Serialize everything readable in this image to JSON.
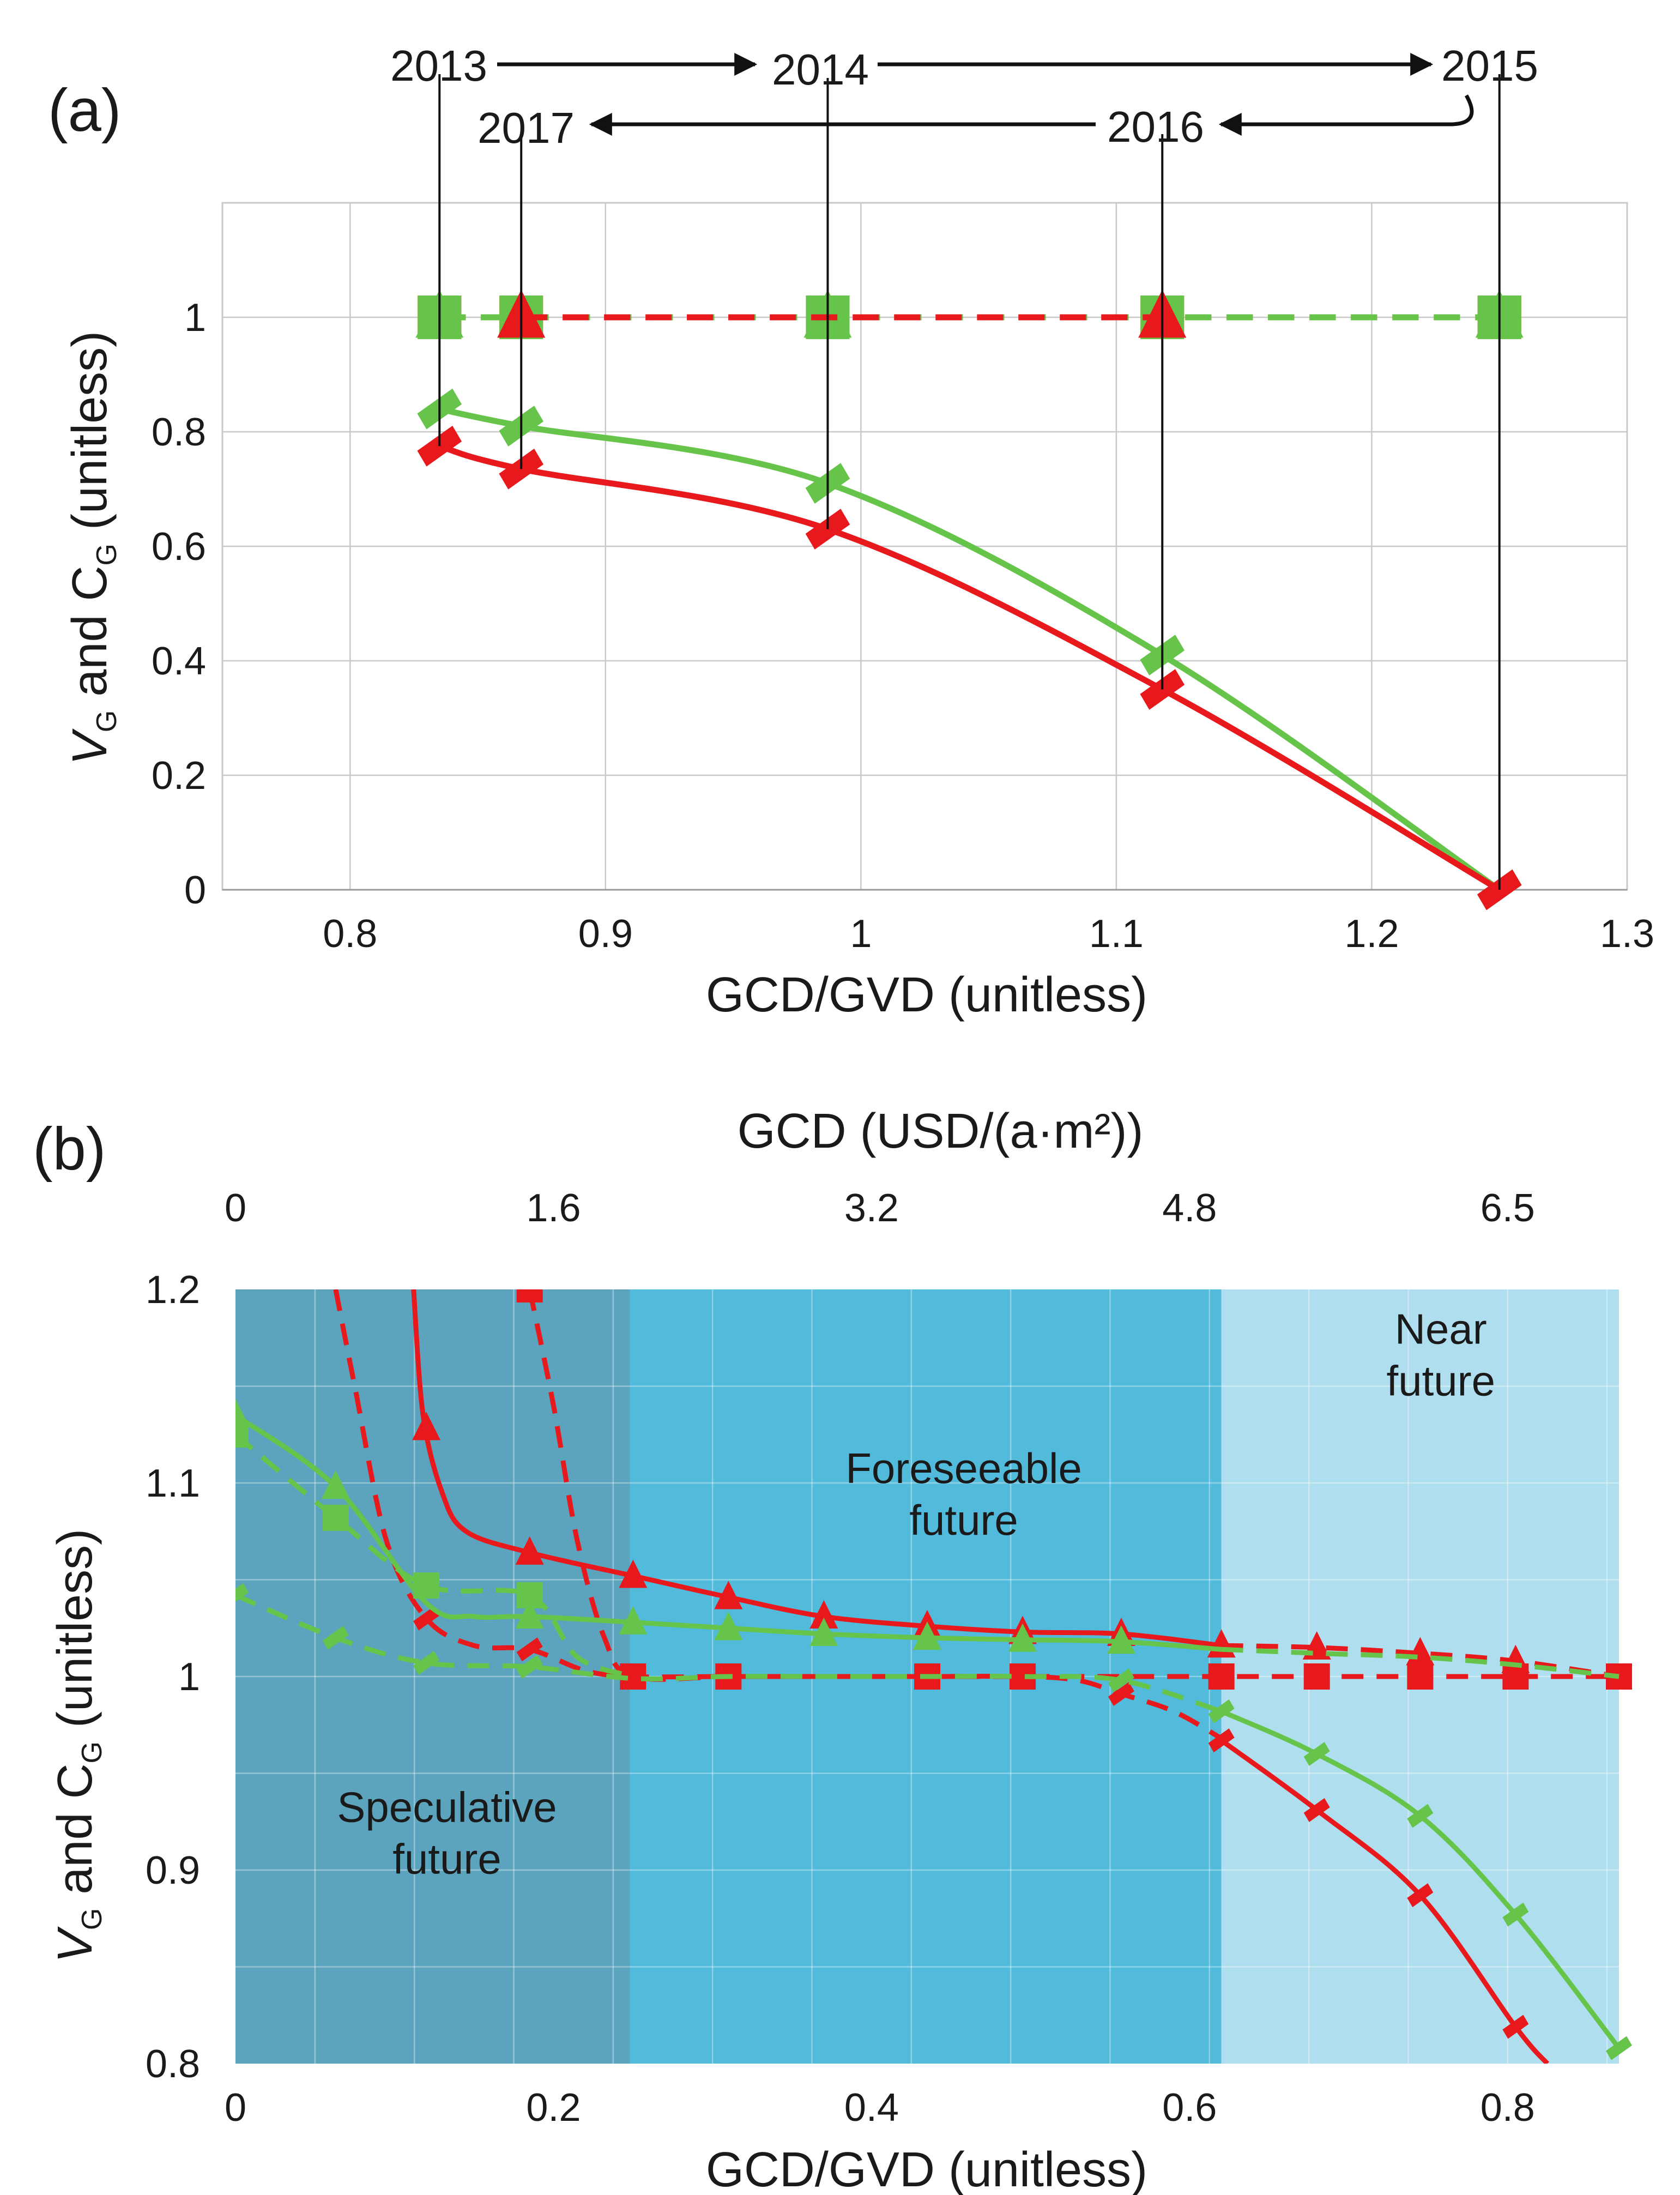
{
  "figure": {
    "panel_a_label": "(a)",
    "panel_b_label": "(b)"
  },
  "colors": {
    "red": "#e8191c",
    "green": "#66c44a",
    "grid": "#c9c9c9",
    "speculative_bg": "#4e9cb8",
    "foreseeable_bg": "#43b4d8",
    "near_bg": "#a8dcee"
  },
  "chart_data": [
    {
      "id": "panel-a",
      "type": "line",
      "title": "",
      "xlabel": "GCD/GVD (unitless)",
      "ylabel_parts": [
        "V",
        "G",
        " and C",
        "G",
        " (unitless)"
      ],
      "xlim": [
        0.75,
        1.3
      ],
      "ylim": [
        0,
        1.2
      ],
      "xticks": [
        0.8,
        0.9,
        1,
        1.1,
        1.2,
        1.3
      ],
      "xtick_labels": [
        "0.8",
        "0.9",
        "1",
        "1.1",
        "1.2",
        "1.3"
      ],
      "yticks": [
        0,
        0.2,
        0.4,
        0.6,
        0.8,
        1
      ],
      "ytick_labels": [
        "0",
        "0.2",
        "0.4",
        "0.6",
        "0.8",
        "1"
      ],
      "years": [
        {
          "label": "2013",
          "x": 0.835
        },
        {
          "label": "2014",
          "x": 0.987
        },
        {
          "label": "2015",
          "x": 1.25
        },
        {
          "label": "2016",
          "x": 1.118
        },
        {
          "label": "2017",
          "x": 0.867
        }
      ],
      "series": [
        {
          "name": "Red VG",
          "color": "red",
          "marker": "square",
          "style": "dashed",
          "x": [
            0.835,
            0.867,
            0.987,
            1.118,
            1.25
          ],
          "y": [
            1,
            1,
            1,
            1,
            1
          ]
        },
        {
          "name": "Green VG",
          "color": "green",
          "marker": "square",
          "style": "dashed",
          "x": [
            0.835,
            0.867,
            0.987,
            1.118,
            1.25
          ],
          "y": [
            1,
            1,
            1,
            1,
            1
          ]
        },
        {
          "name": "Green CG",
          "color": "green",
          "marker": "triangle",
          "style": "dashed",
          "x": [
            0.835,
            0.867,
            0.987,
            1.118,
            1.25
          ],
          "y": [
            1,
            1,
            1,
            1,
            1
          ]
        },
        {
          "name": "Red CG",
          "color": "red",
          "marker": "triangle",
          "style": "dashed",
          "x": [
            0.867,
            1.118
          ],
          "y": [
            1,
            1
          ]
        },
        {
          "name": "Green diamonds",
          "color": "green",
          "marker": "diamond",
          "style": "solid",
          "x": [
            0.835,
            0.867,
            0.987,
            1.118,
            1.25
          ],
          "y": [
            0.84,
            0.81,
            0.71,
            0.41,
            0.0
          ]
        },
        {
          "name": "Red diamonds",
          "color": "red",
          "marker": "diamond",
          "style": "solid",
          "x": [
            0.835,
            0.867,
            0.987,
            1.118,
            1.25
          ],
          "y": [
            0.775,
            0.735,
            0.63,
            0.35,
            0.0
          ]
        }
      ]
    },
    {
      "id": "panel-b",
      "type": "line",
      "title": "",
      "xlabel": "GCD/GVD (unitless)",
      "x2label": "GCD (USD/(a·m²))",
      "ylabel_parts": [
        "V",
        "G",
        " and C",
        "G",
        " (unitless)"
      ],
      "xlim": [
        0,
        0.87
      ],
      "ylim": [
        0.8,
        1.2
      ],
      "xticks": [
        0,
        0.2,
        0.4,
        0.6,
        0.8
      ],
      "xtick_labels": [
        "0",
        "0.2",
        "0.4",
        "0.6",
        "0.8"
      ],
      "x2ticks": [
        0,
        0.2,
        0.4,
        0.6,
        0.8
      ],
      "x2tick_labels": [
        "0",
        "1.6",
        "3.2",
        "4.8",
        "6.5"
      ],
      "yticks": [
        0.8,
        0.9,
        1,
        1.1,
        1.2
      ],
      "ytick_labels": [
        "0.8",
        "0.9",
        "1",
        "1.1",
        "1.2"
      ],
      "regions": [
        {
          "name": "Speculative future",
          "lines": [
            "Speculative",
            "future"
          ],
          "x": [
            0,
            0.248
          ],
          "fill": "speculative_bg",
          "label_x": 0.133,
          "label_y": 0.925
        },
        {
          "name": "Foreseeable future",
          "lines": [
            "Foreseeable",
            "future"
          ],
          "x": [
            0.248,
            0.62
          ],
          "fill": "foreseeable_bg",
          "label_x": 0.458,
          "label_y": 1.1
        },
        {
          "name": "Near future",
          "lines": [
            "Near",
            "future"
          ],
          "x": [
            0.62,
            0.87
          ],
          "fill": "near_bg",
          "label_x": 0.758,
          "label_y": 1.172
        }
      ],
      "series": [
        {
          "name": "Red triangle solid",
          "color": "red",
          "marker": "triangle",
          "style": "solid",
          "x": [
            0.112,
            0.118,
            0.13,
            0.145,
            0.185,
            0.25,
            0.31,
            0.37,
            0.435,
            0.495,
            0.557,
            0.62
          ],
          "y": [
            1.2,
            1.135,
            1.095,
            1.075,
            1.064,
            1.052,
            1.041,
            1.031,
            1.026,
            1.023,
            1.022,
            1.016
          ],
          "markers": [
            0.12,
            0.185,
            0.25,
            0.31,
            0.37,
            0.435,
            0.495,
            0.557,
            0.62
          ]
        },
        {
          "name": "Red triangle dashed",
          "color": "red",
          "marker": "triangle",
          "style": "dashed",
          "x": [
            0.62,
            0.68,
            0.745,
            0.805,
            0.87
          ],
          "y": [
            1.016,
            1.015,
            1.012,
            1.008,
            1.0
          ],
          "markers": [
            0.68,
            0.745,
            0.805
          ]
        },
        {
          "name": "Red square dashed",
          "color": "red",
          "marker": "square",
          "style": "dashed",
          "x": [
            0.185,
            0.2,
            0.215,
            0.232,
            0.25,
            0.31,
            0.37,
            0.435,
            0.495,
            0.557,
            0.62,
            0.68,
            0.745,
            0.805,
            0.87
          ],
          "y": [
            1.2,
            1.14,
            1.07,
            1.02,
            1.0,
            1.0,
            1.0,
            1.0,
            1.0,
            1.0,
            1.0,
            1.0,
            1.0,
            1.0,
            1.0
          ],
          "markers": [
            0.185,
            0.25,
            0.31,
            0.435,
            0.495,
            0.62,
            0.68,
            0.745,
            0.805,
            0.87
          ]
        },
        {
          "name": "Red diamond dashed",
          "color": "red",
          "marker": "diamond",
          "style": "dashed",
          "x": [
            0.063,
            0.075,
            0.095,
            0.12,
            0.15,
            0.185,
            0.22,
            0.25,
            0.31,
            0.37,
            0.435,
            0.495,
            0.53,
            0.557,
            0.59,
            0.62
          ],
          "y": [
            1.2,
            1.15,
            1.07,
            1.03,
            1.016,
            1.014,
            1.003,
            1.0,
            1.0,
            1.0,
            1.0,
            1.0,
            0.998,
            0.991,
            0.982,
            0.968
          ],
          "markers": [
            0.12,
            0.185,
            0.557
          ]
        },
        {
          "name": "Red diamond solid",
          "color": "red",
          "marker": "diamond",
          "style": "solid",
          "x": [
            0.62,
            0.68,
            0.745,
            0.805,
            0.825
          ],
          "y": [
            0.967,
            0.931,
            0.887,
            0.819,
            0.8
          ],
          "markers": [
            0.62,
            0.68,
            0.745,
            0.805
          ]
        },
        {
          "name": "Green triangle solid",
          "color": "green",
          "marker": "triangle",
          "style": "solid",
          "x": [
            0,
            0.063,
            0.12,
            0.15,
            0.185,
            0.25,
            0.31,
            0.37,
            0.435,
            0.495,
            0.557,
            0.62
          ],
          "y": [
            1.135,
            1.098,
            1.038,
            1.031,
            1.031,
            1.028,
            1.025,
            1.022,
            1.02,
            1.019,
            1.018,
            1.014
          ],
          "markers": [
            0,
            0.063,
            0.185,
            0.25,
            0.31,
            0.37,
            0.435,
            0.495,
            0.557
          ]
        },
        {
          "name": "Green triangle dashed",
          "color": "green",
          "marker": "triangle",
          "style": "dashed",
          "x": [
            0.62,
            0.68,
            0.745,
            0.805,
            0.87
          ],
          "y": [
            1.014,
            1.012,
            1.01,
            1.006,
            1.0
          ],
          "markers": []
        },
        {
          "name": "Green square dashed",
          "color": "green",
          "marker": "square",
          "style": "dashed",
          "x": [
            0,
            0.063,
            0.12,
            0.185,
            0.215,
            0.25
          ],
          "y": [
            1.125,
            1.082,
            1.047,
            1.042,
            1.01,
            1.0
          ],
          "markers": [
            0,
            0.063,
            0.12,
            0.185
          ]
        },
        {
          "name": "Green diamond dashed",
          "color": "green",
          "marker": "diamond",
          "style": "dashed",
          "x": [
            0,
            0.063,
            0.12,
            0.185,
            0.25,
            0.31,
            0.37,
            0.435,
            0.495,
            0.557,
            0.62
          ],
          "y": [
            1.042,
            1.02,
            1.007,
            1.005,
            0.999,
            1.0,
            1.0,
            1.0,
            1.0,
            0.998,
            0.982
          ],
          "markers": [
            0,
            0.063,
            0.12,
            0.185,
            0.557
          ]
        },
        {
          "name": "Green diamond solid",
          "color": "green",
          "marker": "diamond",
          "style": "solid",
          "x": [
            0.62,
            0.68,
            0.745,
            0.805,
            0.87
          ],
          "y": [
            0.982,
            0.96,
            0.928,
            0.877,
            0.808
          ],
          "markers": [
            0.62,
            0.68,
            0.745,
            0.805,
            0.87
          ]
        }
      ]
    }
  ]
}
